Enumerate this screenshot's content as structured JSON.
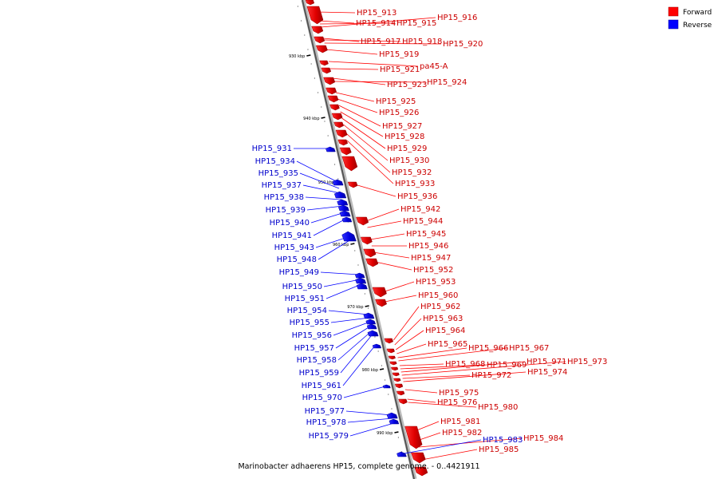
{
  "legend": {
    "forward_label": "Forward",
    "reverse_label": "Reverse",
    "forward_color": "#ff0000",
    "reverse_color": "#0000ff"
  },
  "caption": "Marinobacter adhaerens HP15, complete genome. - 0..4421911",
  "ticks": [
    "930 kbp",
    "940 kbp",
    "950 kbp",
    "960 kbp",
    "970 kbp",
    "980 kbp",
    "990 kbp"
  ],
  "forward_genes": [
    "HP15_913",
    "HP15_914",
    "HP15_915",
    "HP15_916",
    "HP15_917",
    "HP15_918",
    "HP15_920",
    "HP15_919",
    "pa45-A",
    "HP15_921",
    "HP15_923",
    "HP15_924",
    "HP15_925",
    "HP15_926",
    "HP15_927",
    "HP15_928",
    "HP15_929",
    "HP15_930",
    "HP15_932",
    "HP15_933",
    "HP15_936",
    "HP15_942",
    "HP15_944",
    "HP15_945",
    "HP15_946",
    "HP15_947",
    "HP15_952",
    "HP15_953",
    "HP15_960",
    "HP15_962",
    "HP15_963",
    "HP15_964",
    "HP15_965",
    "HP15_966",
    "HP15_967",
    "HP15_968",
    "HP15_969",
    "HP15_971",
    "HP15_973",
    "HP15_972",
    "HP15_974",
    "HP15_975",
    "HP15_976",
    "HP15_980",
    "HP15_981",
    "HP15_982",
    "HP15_984",
    "HP15_985"
  ],
  "reverse_genes": [
    "HP15_931",
    "HP15_934",
    "HP15_935",
    "HP15_937",
    "HP15_938",
    "HP15_939",
    "HP15_940",
    "HP15_941",
    "HP15_943",
    "HP15_948",
    "HP15_949",
    "HP15_950",
    "HP15_951",
    "HP15_954",
    "HP15_955",
    "HP15_956",
    "HP15_957",
    "HP15_958",
    "HP15_959",
    "HP15_961",
    "HP15_970",
    "HP15_977",
    "HP15_978",
    "HP15_979",
    "HP15_983"
  ]
}
